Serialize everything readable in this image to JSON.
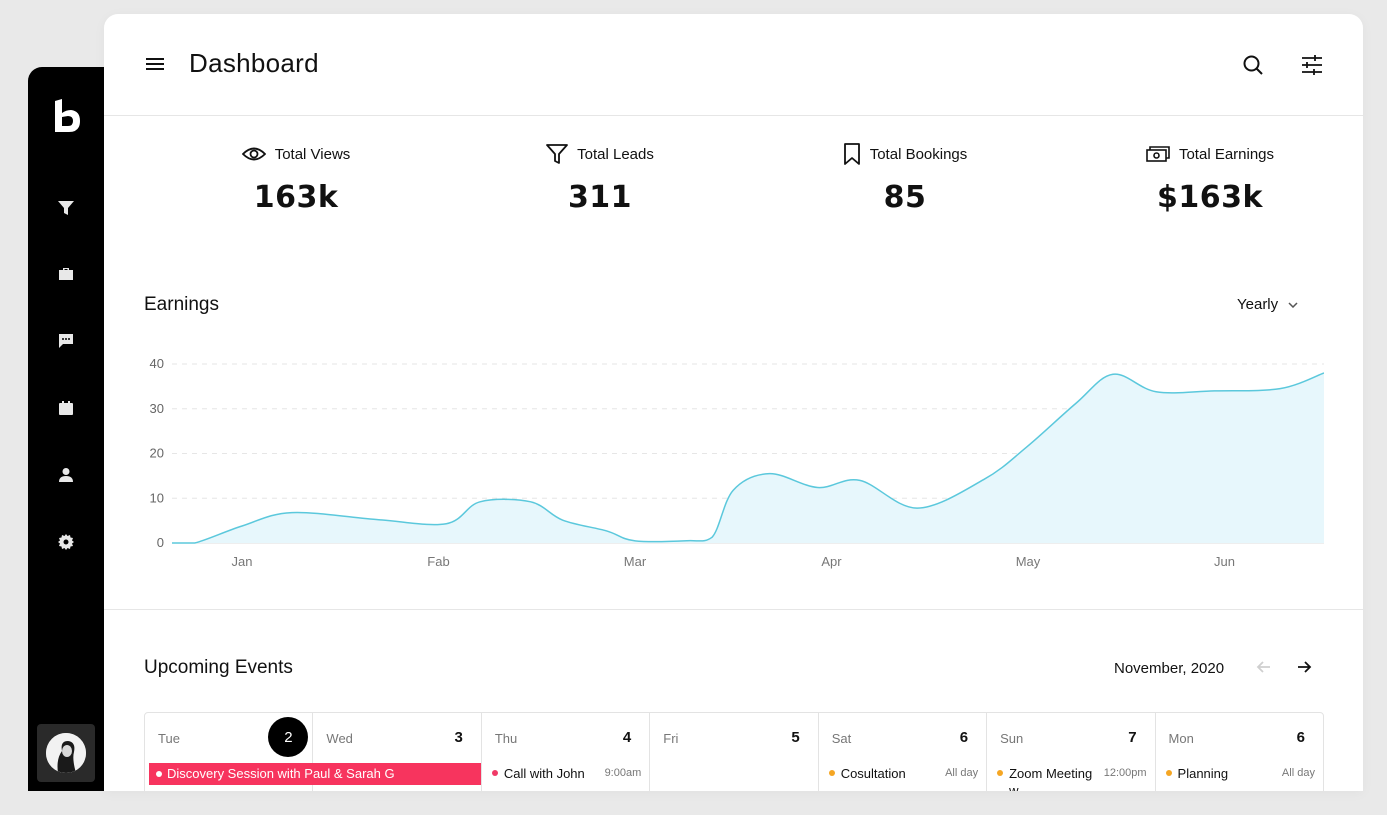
{
  "header": {
    "title": "Dashboard"
  },
  "stats": [
    {
      "label": "Total Views",
      "value": "163k",
      "icon": "eye-icon"
    },
    {
      "label": "Total Leads",
      "value": "311",
      "icon": "funnel-icon"
    },
    {
      "label": "Total Bookings",
      "value": "85",
      "icon": "bookmark-icon"
    },
    {
      "label": "Total Earnings",
      "value": "$163k",
      "icon": "cash-icon"
    }
  ],
  "earnings": {
    "title": "Earnings",
    "period": "Yearly"
  },
  "chart_data": {
    "type": "area",
    "categories": [
      "Jan",
      "Fab",
      "Mar",
      "Apr",
      "May",
      "Jun"
    ],
    "y_ticks": [
      "0",
      "10",
      "20",
      "30",
      "40"
    ],
    "ylim": [
      0,
      40
    ],
    "grid": true,
    "color": "#5bc8dc",
    "fill": "#e7f7fc",
    "series": [
      {
        "x": [
          0,
          0.27,
          0.83,
          1.42,
          2.45,
          3.25,
          3.65,
          4.25,
          4.63,
          5.15,
          5.48,
          6.1,
          6.4,
          6.65,
          7.08,
          7.65,
          8.15,
          8.83,
          9.62,
          10.13,
          10.71,
          11.15,
          11.66,
          12.35,
          13.13,
          13.65
        ],
        "y": [
          0,
          0,
          3.8,
          6.8,
          5.2,
          4.3,
          9.2,
          9.2,
          5.1,
          2.7,
          0.5,
          0.5,
          1.3,
          11.8,
          15.5,
          12.4,
          14.0,
          7.8,
          14.2,
          21.5,
          31.2,
          37.7,
          33.8,
          34.0,
          34.5,
          38.0
        ]
      }
    ]
  },
  "events": {
    "title": "Upcoming Events",
    "month": "November, 2020",
    "days": [
      {
        "name": "Tue",
        "num": "2",
        "active": true
      },
      {
        "name": "Wed",
        "num": "3",
        "active": false
      },
      {
        "name": "Thu",
        "num": "4",
        "active": false,
        "event": {
          "title": "Call with John",
          "time": "9:00am",
          "color": "#f03a67"
        }
      },
      {
        "name": "Fri",
        "num": "5",
        "active": false
      },
      {
        "name": "Sat",
        "num": "6",
        "active": false,
        "event": {
          "title": "Cosultation",
          "time": "All day",
          "color": "#f5a623"
        }
      },
      {
        "name": "Sun",
        "num": "7",
        "active": false,
        "event": {
          "title": "Zoom Meeting w...",
          "time": "12:00pm",
          "color": "#f5a623"
        }
      },
      {
        "name": "Mon",
        "num": "6",
        "active": false,
        "event": {
          "title": "Planning",
          "time": "All day",
          "color": "#f5a623"
        }
      }
    ],
    "banner": "Discovery Session with Paul & Sarah G"
  }
}
